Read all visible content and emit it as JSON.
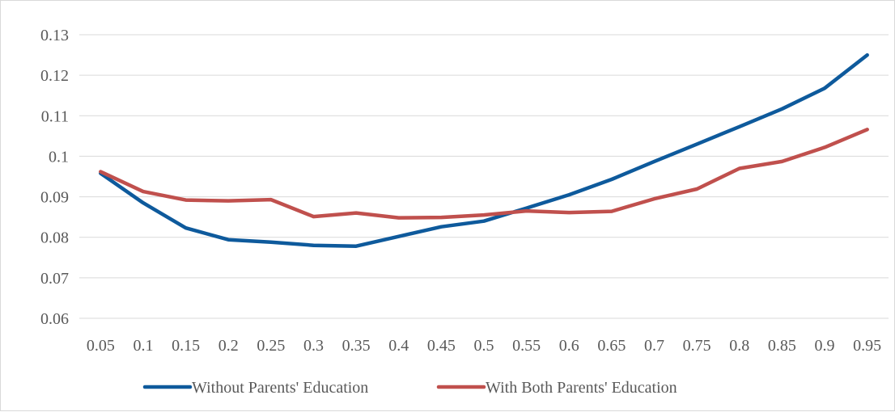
{
  "chart_data": {
    "type": "line",
    "title": "",
    "xlabel": "",
    "ylabel": "",
    "x": [
      "0.05",
      "0.1",
      "0.15",
      "0.2",
      "0.25",
      "0.3",
      "0.35",
      "0.4",
      "0.45",
      "0.5",
      "0.55",
      "0.6",
      "0.65",
      "0.7",
      "0.75",
      "0.8",
      "0.85",
      "0.9",
      "0.95"
    ],
    "ylim": [
      0.06,
      0.13
    ],
    "yticks": [
      "0.06",
      "0.07",
      "0.08",
      "0.09",
      "0.1",
      "0.11",
      "0.12",
      "0.13"
    ],
    "grid": true,
    "legend_position": "bottom",
    "series": [
      {
        "name": "Without Parents' Education",
        "color": "#0e5a9c",
        "values": [
          0.0958,
          0.0885,
          0.0823,
          0.0794,
          0.0788,
          0.078,
          0.0778,
          0.0802,
          0.0826,
          0.084,
          0.0872,
          0.0905,
          0.0943,
          0.0987,
          0.103,
          0.1073,
          0.1117,
          0.1168,
          0.125
        ]
      },
      {
        "name": "With Both Parents' Education",
        "color": "#c0504d",
        "values": [
          0.0962,
          0.0913,
          0.0892,
          0.089,
          0.0893,
          0.0851,
          0.086,
          0.0848,
          0.0849,
          0.0855,
          0.0865,
          0.0861,
          0.0864,
          0.0895,
          0.0919,
          0.097,
          0.0987,
          0.1022,
          0.1066
        ]
      }
    ]
  }
}
